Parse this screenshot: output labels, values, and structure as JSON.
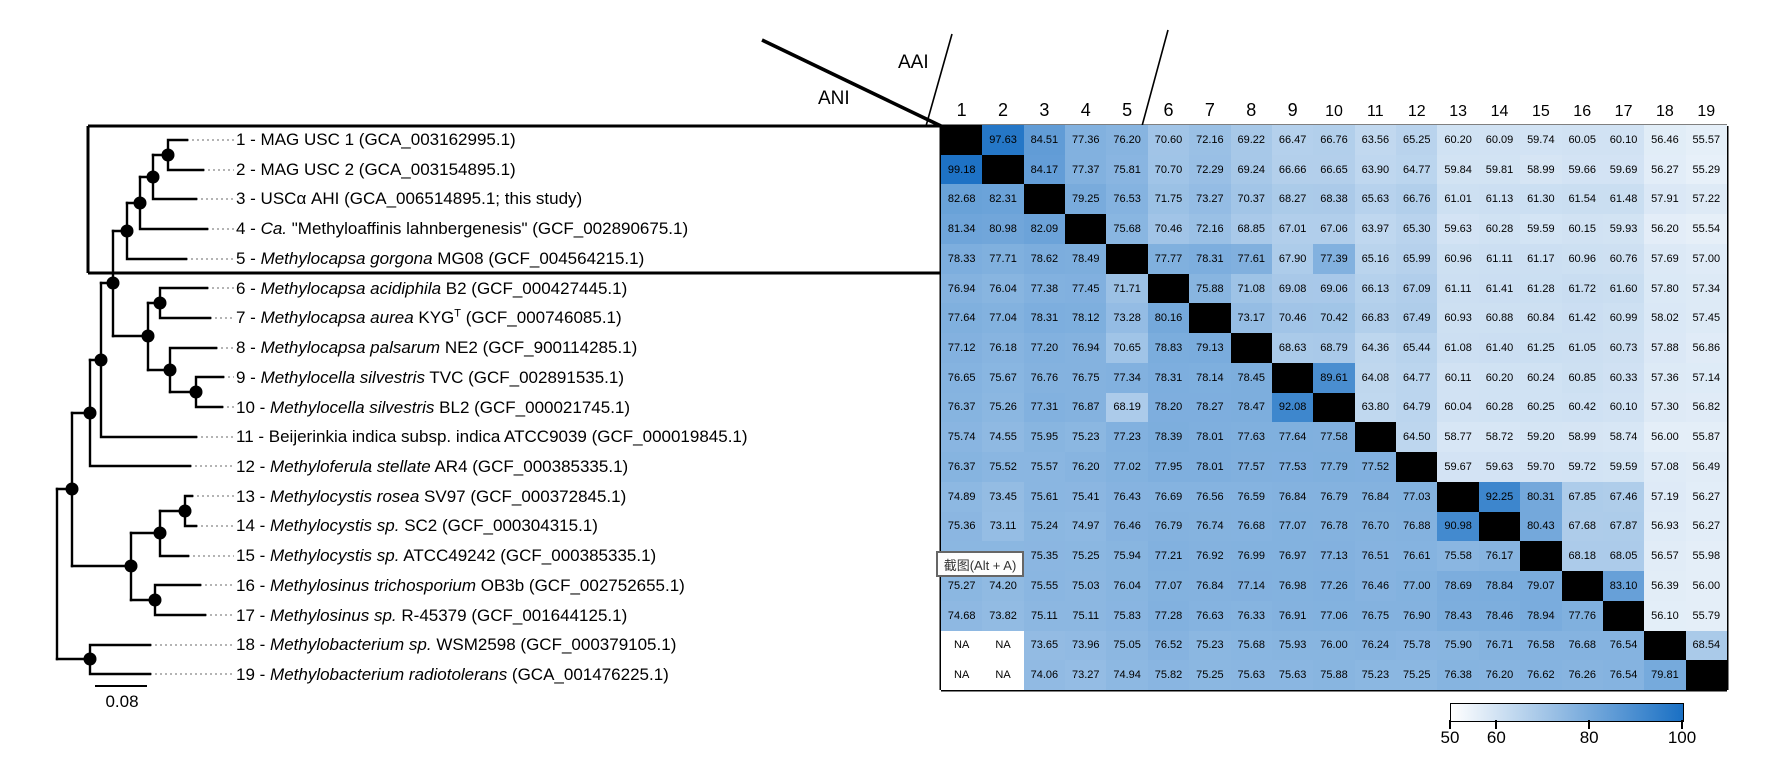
{
  "header": {
    "ani_label": "ANI",
    "aai_label": "AAI"
  },
  "overlay_tooltip": {
    "text": "截图(Alt + A)"
  },
  "scale_bar": {
    "label": "0.08"
  },
  "colors": {
    "heat_min": "#ffffff",
    "heat_max": "#1a70c4",
    "diagonal": "#000000",
    "hidden_cell": "#8bb7e1"
  },
  "chart_data": {
    "type": "heatmap",
    "lower_triangle_metric": "ANI",
    "upper_triangle_metric": "AAI",
    "legend": {
      "min": 50,
      "max": 100,
      "tick_labels": [
        "50",
        "60",
        "80",
        "100"
      ],
      "tick_values": [
        50,
        60,
        80,
        100
      ]
    },
    "tree_scale_bar": "0.08",
    "col_headers": [
      "1",
      "2",
      "3",
      "4",
      "5",
      "6",
      "7",
      "8",
      "9",
      "10",
      "11",
      "12",
      "13",
      "14",
      "15",
      "16",
      "17",
      "18",
      "19"
    ],
    "taxa": [
      {
        "segments": [
          {
            "t": "1 - MAG USC 1 (GCA_003162995.1)"
          }
        ]
      },
      {
        "segments": [
          {
            "t": "2 - MAG USC 2 (GCA_003154895.1)"
          }
        ]
      },
      {
        "segments": [
          {
            "t": "3 - USCα AHI (GCA_006514895.1; this study)"
          }
        ]
      },
      {
        "segments": [
          {
            "t": "4 - "
          },
          {
            "t": "Ca.",
            "i": 1
          },
          {
            "t": " \"Methyloaffinis lahnbergenesis\" (GCF_002890675.1)"
          }
        ]
      },
      {
        "segments": [
          {
            "t": "5 - "
          },
          {
            "t": "Methylocapsa gorgona",
            "i": 1
          },
          {
            "t": " MG08 (GCF_004564215.1)"
          }
        ]
      },
      {
        "segments": [
          {
            "t": "6 - "
          },
          {
            "t": "Methylocapsa acidiphila",
            "i": 1
          },
          {
            "t": " B2 (GCF_000427445.1)"
          }
        ]
      },
      {
        "segments": [
          {
            "t": "7 - "
          },
          {
            "t": "Methylocapsa aurea",
            "i": 1
          },
          {
            "t": " KYG"
          },
          {
            "t": "T",
            "sup": 1
          },
          {
            "t": " (GCF_000746085.1)"
          }
        ]
      },
      {
        "segments": [
          {
            "t": "8 - "
          },
          {
            "t": "Methylocapsa palsarum",
            "i": 1
          },
          {
            "t": " NE2 (GCF_900114285.1)"
          }
        ]
      },
      {
        "segments": [
          {
            "t": "9 - "
          },
          {
            "t": "Methylocella silvestris",
            "i": 1
          },
          {
            "t": " TVC (GCF_002891535.1)"
          }
        ]
      },
      {
        "segments": [
          {
            "t": "10 - "
          },
          {
            "t": "Methylocella silvestris",
            "i": 1
          },
          {
            "t": " BL2 (GCF_000021745.1)"
          }
        ]
      },
      {
        "segments": [
          {
            "t": "11 - Beijerinkia indica subsp. indica ATCC9039 (GCF_000019845.1)"
          }
        ]
      },
      {
        "segments": [
          {
            "t": "12 - "
          },
          {
            "t": "Methyloferula stellate",
            "i": 1
          },
          {
            "t": " AR4 (GCF_000385335.1)"
          }
        ]
      },
      {
        "segments": [
          {
            "t": "13 - "
          },
          {
            "t": "Methylocystis rosea",
            "i": 1
          },
          {
            "t": " SV97 (GCF_000372845.1)"
          }
        ]
      },
      {
        "segments": [
          {
            "t": "14 - "
          },
          {
            "t": "Methylocystis sp.",
            "i": 1
          },
          {
            "t": " SC2 (GCF_000304315.1)"
          }
        ]
      },
      {
        "segments": [
          {
            "t": "15 - "
          },
          {
            "t": "Methylocystis sp.",
            "i": 1
          },
          {
            "t": " ATCC49242 (GCF_000385335.1)"
          }
        ]
      },
      {
        "segments": [
          {
            "t": "16 - "
          },
          {
            "t": "Methylosinus trichosporium",
            "i": 1
          },
          {
            "t": " OB3b (GCF_002752655.1)"
          }
        ]
      },
      {
        "segments": [
          {
            "t": "17 - "
          },
          {
            "t": "Methylosinus sp.",
            "i": 1
          },
          {
            "t": " R-45379 (GCF_001644125.1)"
          }
        ]
      },
      {
        "segments": [
          {
            "t": "18 - "
          },
          {
            "t": "Methylobacterium sp.",
            "i": 1
          },
          {
            "t": " WSM2598 (GCF_000379105.1)"
          }
        ]
      },
      {
        "segments": [
          {
            "t": "19 - "
          },
          {
            "t": "Methylobacterium radiotolerans",
            "i": 1
          },
          {
            "t": " (GCA_001476225.1)"
          }
        ]
      }
    ],
    "matrix_note": "null = black diagonal cell, \"NA\" = not available, \"\" = cell hidden under screenshot tooltip",
    "matrix": [
      [
        null,
        97.63,
        84.51,
        77.36,
        76.2,
        70.6,
        72.16,
        69.22,
        66.47,
        66.76,
        63.56,
        65.25,
        60.2,
        60.09,
        59.74,
        60.05,
        60.1,
        56.46,
        55.57
      ],
      [
        99.18,
        null,
        84.17,
        77.37,
        75.81,
        70.7,
        72.29,
        69.24,
        66.66,
        66.65,
        63.9,
        64.77,
        59.84,
        59.81,
        58.99,
        59.66,
        59.69,
        56.27,
        55.29
      ],
      [
        82.68,
        82.31,
        null,
        79.25,
        76.53,
        71.75,
        73.27,
        70.37,
        68.27,
        68.38,
        65.63,
        66.76,
        61.01,
        61.13,
        61.3,
        61.54,
        61.48,
        57.91,
        57.22
      ],
      [
        81.34,
        80.98,
        82.09,
        null,
        75.68,
        70.46,
        72.16,
        68.85,
        67.01,
        67.06,
        63.97,
        65.3,
        59.63,
        60.28,
        59.59,
        60.15,
        59.93,
        56.2,
        55.54
      ],
      [
        78.33,
        77.71,
        78.62,
        78.49,
        null,
        77.77,
        78.31,
        77.61,
        67.9,
        77.39,
        65.16,
        65.99,
        60.96,
        61.11,
        61.17,
        60.96,
        60.76,
        57.69,
        57.0
      ],
      [
        76.94,
        76.04,
        77.38,
        77.45,
        71.71,
        null,
        75.88,
        71.08,
        69.08,
        69.06,
        66.13,
        67.09,
        61.11,
        61.41,
        61.28,
        61.72,
        61.6,
        57.8,
        57.34
      ],
      [
        77.64,
        77.04,
        78.31,
        78.12,
        73.28,
        80.16,
        null,
        73.17,
        70.46,
        70.42,
        66.83,
        67.49,
        60.93,
        60.88,
        60.84,
        61.42,
        60.99,
        58.02,
        57.45
      ],
      [
        77.12,
        76.18,
        77.2,
        76.94,
        70.65,
        78.83,
        79.13,
        null,
        68.63,
        68.79,
        64.36,
        65.44,
        61.08,
        61.4,
        61.25,
        61.05,
        60.73,
        57.88,
        56.86
      ],
      [
        76.65,
        75.67,
        76.76,
        76.75,
        77.34,
        78.31,
        78.14,
        78.45,
        null,
        89.61,
        64.08,
        64.77,
        60.11,
        60.2,
        60.24,
        60.85,
        60.33,
        57.36,
        57.14
      ],
      [
        76.37,
        75.26,
        77.31,
        76.87,
        68.19,
        78.2,
        78.27,
        78.47,
        92.08,
        null,
        63.8,
        64.79,
        60.04,
        60.28,
        60.25,
        60.42,
        60.1,
        57.3,
        56.82
      ],
      [
        75.74,
        74.55,
        75.95,
        75.23,
        77.23,
        78.39,
        78.01,
        77.63,
        77.64,
        77.58,
        null,
        64.5,
        58.77,
        58.72,
        59.2,
        58.99,
        58.74,
        56.0,
        55.87
      ],
      [
        76.37,
        75.52,
        75.57,
        76.2,
        77.02,
        77.95,
        78.01,
        77.57,
        77.53,
        77.79,
        77.52,
        null,
        59.67,
        59.63,
        59.7,
        59.72,
        59.59,
        57.08,
        56.49
      ],
      [
        74.89,
        73.45,
        75.61,
        75.41,
        76.43,
        76.69,
        76.56,
        76.59,
        76.84,
        76.79,
        76.84,
        77.03,
        null,
        92.25,
        80.31,
        67.85,
        67.46,
        57.19,
        56.27
      ],
      [
        75.36,
        73.11,
        75.24,
        74.97,
        76.46,
        76.79,
        76.74,
        76.68,
        77.07,
        76.78,
        76.7,
        76.88,
        90.98,
        null,
        80.43,
        67.68,
        67.87,
        56.93,
        56.27
      ],
      [
        "",
        "",
        75.35,
        75.25,
        75.94,
        77.21,
        76.92,
        76.99,
        76.97,
        77.13,
        76.51,
        76.61,
        75.58,
        76.17,
        null,
        68.18,
        68.05,
        56.57,
        55.98
      ],
      [
        75.27,
        74.2,
        75.55,
        75.03,
        76.04,
        77.07,
        76.84,
        77.14,
        76.98,
        77.26,
        76.46,
        77.0,
        78.69,
        78.84,
        79.07,
        null,
        83.1,
        56.39,
        56.0
      ],
      [
        74.68,
        73.82,
        75.11,
        75.11,
        75.83,
        77.28,
        76.63,
        76.33,
        76.91,
        77.06,
        76.75,
        76.9,
        78.43,
        78.46,
        78.94,
        77.76,
        null,
        56.1,
        55.79
      ],
      [
        "NA",
        "NA",
        73.65,
        73.96,
        75.05,
        76.52,
        75.23,
        75.68,
        75.93,
        76.0,
        76.24,
        75.78,
        75.9,
        76.71,
        76.58,
        76.68,
        76.54,
        null,
        68.54
      ],
      [
        "NA",
        "NA",
        74.06,
        73.27,
        74.94,
        75.82,
        75.25,
        75.63,
        75.63,
        75.88,
        75.23,
        75.25,
        76.38,
        76.2,
        76.62,
        76.26,
        76.54,
        79.81,
        null
      ]
    ]
  }
}
